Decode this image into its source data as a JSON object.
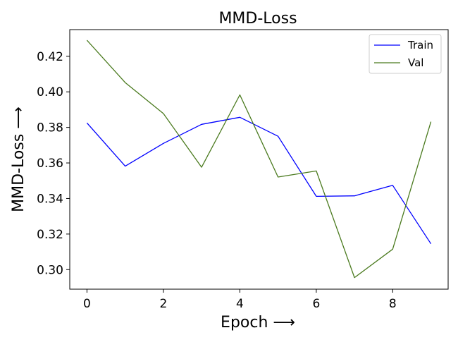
{
  "chart_data": {
    "type": "line",
    "title": "MMD-Loss",
    "xlabel": "Epoch ⟶",
    "ylabel": "MMD-Loss ⟶",
    "x": [
      0,
      1,
      2,
      3,
      4,
      5,
      6,
      7,
      8,
      9
    ],
    "xlim": [
      -0.45,
      9.45
    ],
    "ylim": [
      0.289,
      0.435
    ],
    "xticks": [
      0,
      2,
      4,
      6,
      8
    ],
    "yticks": [
      0.3,
      0.32,
      0.34,
      0.36,
      0.38,
      0.4,
      0.42
    ],
    "xtick_labels": [
      "0",
      "2",
      "4",
      "6",
      "8"
    ],
    "ytick_labels": [
      "0.30",
      "0.32",
      "0.34",
      "0.36",
      "0.38",
      "0.40",
      "0.42"
    ],
    "grid": false,
    "legend_position": "top-right",
    "series": [
      {
        "name": "Train",
        "color": "#0000ff",
        "values": [
          0.3825,
          0.3582,
          0.371,
          0.3817,
          0.3857,
          0.375,
          0.3412,
          0.3415,
          0.3474,
          0.3145
        ]
      },
      {
        "name": "Val",
        "color": "#4a7a1e",
        "values": [
          0.429,
          0.4052,
          0.3878,
          0.3576,
          0.3983,
          0.3521,
          0.3555,
          0.2955,
          0.3115,
          0.3832
        ]
      }
    ]
  }
}
